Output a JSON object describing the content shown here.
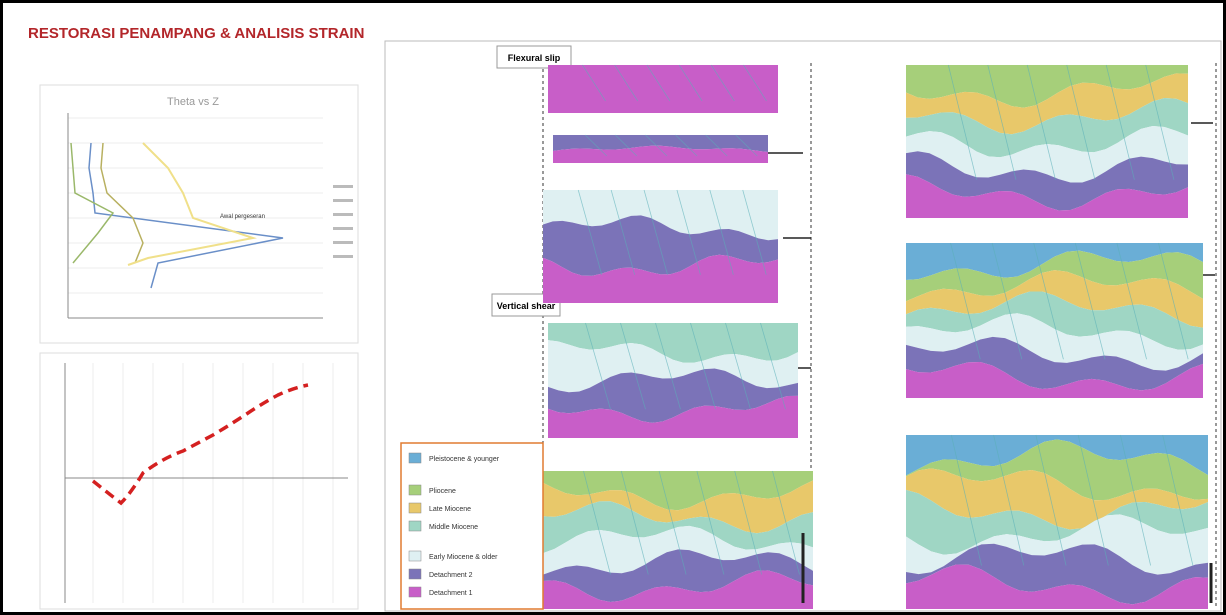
{
  "title": "RESTORASI PENAMPANG & ANALISIS STRAIN",
  "left_top_chart": {
    "title": "Theta vs Z",
    "annotation": "Awal pergeseran"
  },
  "sections": {
    "flexural_slip": "Flexural slip",
    "vertical_shear": "Vertical shear"
  },
  "legend": [
    {
      "label": "Pleistocene & younger",
      "color": "#6aaed6"
    },
    {
      "label": "Pliocene",
      "color": "#a6cf7a"
    },
    {
      "label": "Late Miocene",
      "color": "#e8c86a"
    },
    {
      "label": "Middle Miocene",
      "color": "#9fd6c4"
    },
    {
      "label": "Early Miocene & older",
      "color": "#dff0f2"
    },
    {
      "label": "Detachment 2",
      "color": "#7b73b8"
    },
    {
      "label": "Detachment 1",
      "color": "#c85ec8"
    }
  ]
}
